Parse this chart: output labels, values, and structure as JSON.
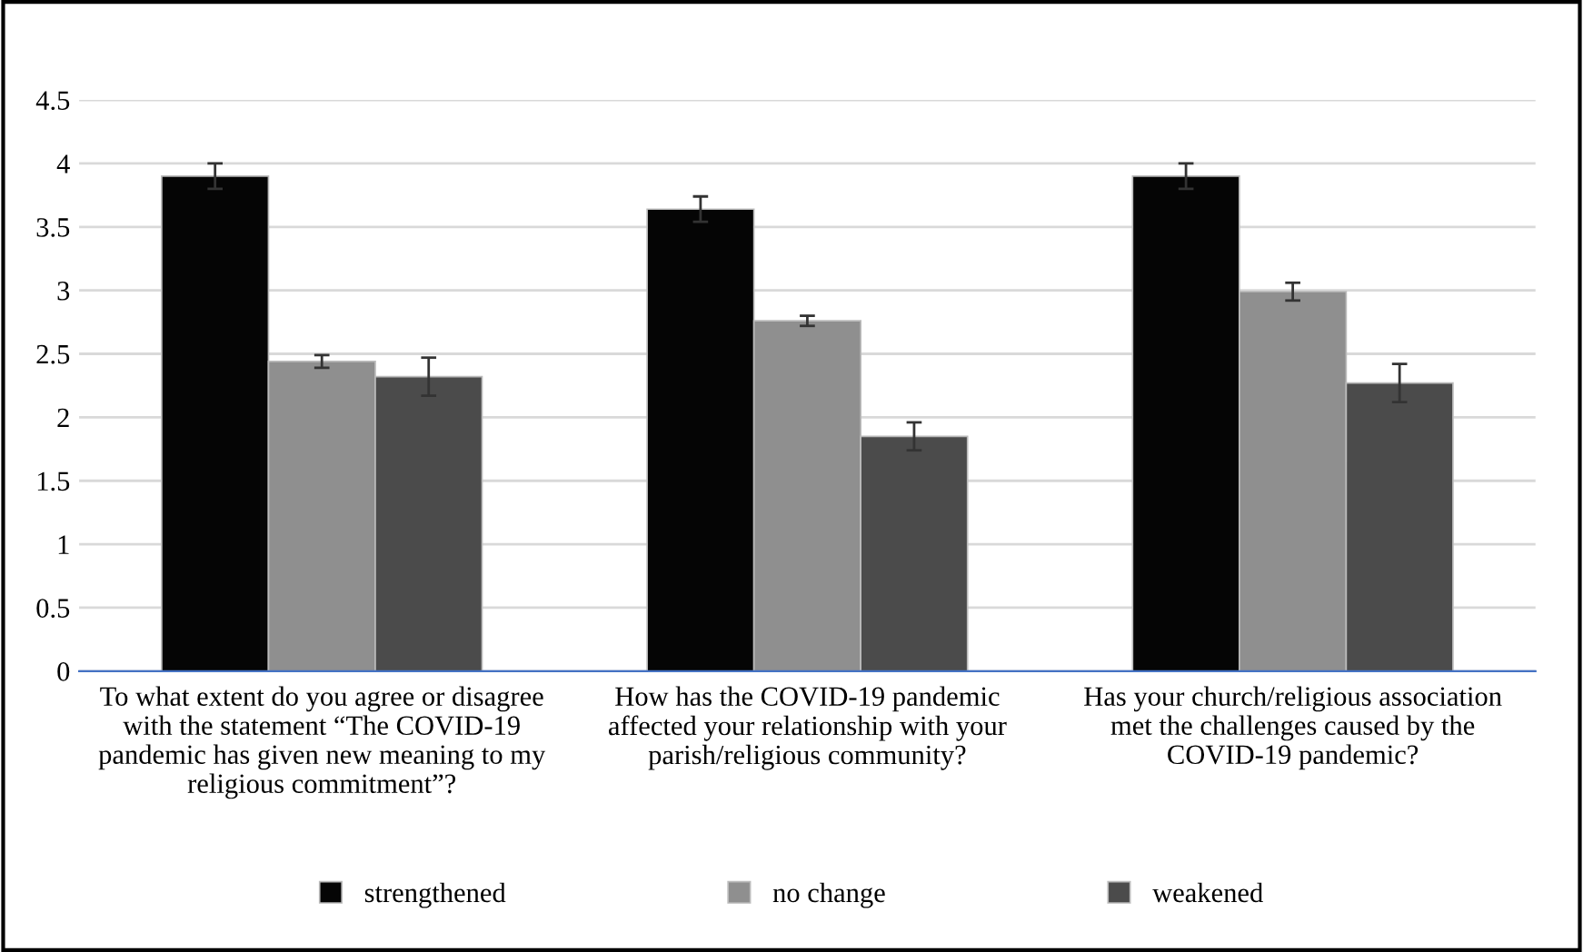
{
  "chart_data": {
    "type": "bar",
    "categories": [
      "To what extent do you agree or disagree\nwith the statement “The COVID-19\npandemic has given new meaning to my\nreligious commitment”?",
      "How has the COVID-19 pandemic\naffected your relationship with your\nparish/religious community?",
      "Has your church/religious association\nmet the challenges caused by the\nCOVID-19 pandemic?"
    ],
    "series": [
      {
        "name": "strengthened",
        "color": "#050505",
        "values": [
          3.9,
          3.64,
          3.9
        ],
        "errors": [
          0.1,
          0.1,
          0.1
        ]
      },
      {
        "name": "no change",
        "color": "#8f8f8f",
        "values": [
          2.44,
          2.76,
          2.99
        ],
        "errors": [
          0.05,
          0.04,
          0.07
        ]
      },
      {
        "name": "weakened",
        "color": "#4b4b4b",
        "values": [
          2.32,
          1.85,
          2.27
        ],
        "errors": [
          0.15,
          0.11,
          0.15
        ]
      }
    ],
    "ylim": [
      0,
      4.5
    ],
    "yticks": [
      0,
      0.5,
      1,
      1.5,
      2,
      2.5,
      3,
      3.5,
      4,
      4.5
    ],
    "grid": "y",
    "legend": "bottom"
  }
}
